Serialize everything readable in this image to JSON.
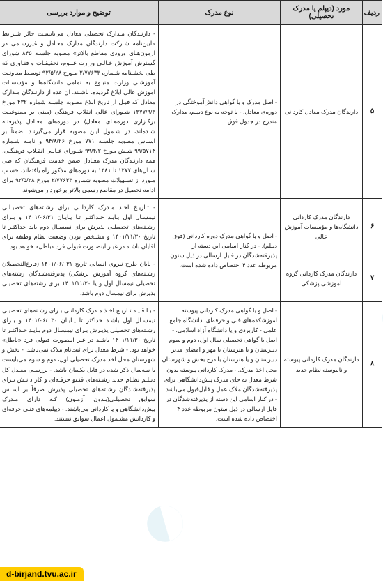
{
  "footer": "d-birjand.tvu.ac.ir",
  "headers": {
    "num": "ردیف",
    "case": "مورد (دیپلم یا مدرک تحصیلی)",
    "type": "نوع مدرک",
    "desc": "توضیح و موارد بررسی"
  },
  "rows": [
    {
      "num": "۵",
      "case": "دارندگان مدرک معادل کاردانی",
      "type": "- اصل مدرک و یا گواهی دانش‌آموختگی در دوره‌ی معادل.\n- با توجه به نوع دیپلم، مدارک مندرج در جدول فوق.",
      "desc": "- دارنـدگان مـدارک تحصیلی معادل می‌بایسـت حائز شـرایط «آیین‌نامه شـرکت دارندگان مدارک معـادل و غیررسـمی در آزمون‌هـای ورودی مقاطع بالاتر» مصوبه جلسـه ۸۴۵ شورای گسترش آموزش عـالـی وزارت علـوم، تحقیقـات و فنـاوری که طی بخشـنامه شـماره ۲/۷۷۶۳۳ مـورخ ۹۲/۵/۲۸ توسـط معاونـت آموزشـی وزارت متبـوع به تمامی دانشگاه‌ها و مؤسسـات آموزش عالی ابلاغ گردیده، باشـند. آن عده از دارنـدگان مـدارک معادل که قبـل از تاریخ ابلاغ مصوبه جلسـه شماره ۴۳۲ مورخ ۱۳۷۷/۹/۳ شـورای عالی انقلاب فرهنگی (مبنی بر ممنوعیـت برگـزاری دوره‌هـای معادل) در دوره‌های معـادل پذیرفتـه شـده‌اند، در شـمول ایـن مصوبه قرار می‌گیرنـد. ضمناً بر اسـاس مصوبه جلسـه ۷۷۱ مورخ ۹۴/۸/۲۶ و نامـه شـماره ۹۹/۵۷۱۴ شـش مورخ ۹۹/۴/۲ شـورای عـالـی انقـلاب فرهنگـی، همه دارنـدگان مدرک معـادل ضمن خدمت فرهنگیان که طی سـال‌های ۱۲۷۷ تا ۱۳۸۱ به دوره‌های مذکور راه یافته‌اند، حسـب مـورد از تسـهیلات مصوبه شماره ۲/۷۷۶۳۳ مورخ ۹۲/۵/۲۸ برای ادامه تحصیل در مقاطع رسمی بالاتر برخوردار می‌شوند."
    },
    {
      "num": "۶",
      "case": "دارندگان مدرک کاردانی دانشگاه‌ها و مؤسسات آموزش عالی",
      "type": "- اصل و یا گواهی مدرک دوره کاردانی (فوق دیپلم).\n- در کنار اسامی این دسته از پذیرفته‌شدگان در فایل ارسالی در ذیل ستون مربوطه عدد ۴ اختصاص داده شده است.",
      "desc": "- تـاریـخ اخـذ مـدرک کاردانـی برای رشـته‌های تحصیـلـی نیمسـال اول بـایـد حـداکثـر تـا پـایـان ۱۴۰۱/۰۶/۳۱ و بـرای رشـته‌های تحصیلـی پذیرش برای نیمسـال دوم باید حداکثـر تا تاریخ ۱۴۰۱/۱۱/۳۰ و مشـخص بودن وضعیت نظام وظیفه برای آقایان باشـد در غیـر اینصـورت قبولی فرد «باطل» خواهد بود."
    },
    {
      "num": "۷",
      "case": "دارندگان مدرک کاردانی گروه آموزشی پزشکی",
      "type": "",
      "desc": "- پایان طرح نیروی انسانی تاریخ ۳۱ /۱۴۰۱/۰۶ (فارغ‌التحصیلان رشـته‌های گروه آموزش پزشکی) پذیرفته‌شـدگان رشته‌های تحصیلی نیمسال اول و یا ۱۴۰۱/۱۱/۳۰ برای رشته‌های تحصیلی پذیرش برای نیمسال دوم باشد."
    },
    {
      "num": "۸",
      "case": "دارندگان مدرک کاردانی پیوسته و ناپیوسته نظام جدید",
      "type": "- اصل و یا گواهی مدرک کاردانی پیوسته آموزشکده‌های فنی و حرفه‌ای، دانشگاه جامع علمی - کاربردی و یا دانشگاه آزاد اسلامی.\n- اصل یا گواهی تحصیلی سال اول، دوم و سوم دبیرستان و یا هنرستان با مهر و امضای مدیر دبیرستان و یا هنرستان با درج بخش و شهرستان محل اخذ مدرک.\n- مدرک کاردانی پیوسته بدون شرط معدل به جای مدرک پیش‌دانشگاهی برای پذیرفته‌شدگان ملاک عمل و قابل‌قبول می‌باشد.\n- در کنار اسامی این دسته از پذیرفته‌شدگان در فایل ارسالی در ذیل ستون مربوطه عدد ۴ اختصاص داده شده است.",
      "desc": "- بـا قـیـد تـاریـخ اخـذ مـدرک کاردانـی بـرای رشـته‌های تحصیلی نیمسـال اول باشـد حداکثر تا پـایـان ۳۰ /۱۴۰۱/۰۶ و بـرای رشـته‌های تحصیلی پذیـرش بـرای نیمسـال دوم بـایـد حـداکثـر تا تاریخ ۱۴۰۱/۱۱/۳۰ باشـد در غیر اینصورت قبولی فرد «باطل» خواهد بود.\n- شرط معدل برای ثبت‌نام ملاک نمی‌باشد.\n- بخش و شهرستان محل اخذ مدرک تحصیلی اول، دوم و سوم می‌بایست با سه‌سال ذکر شده در فایل یکسان باشد.\n- بررسـی معـدل کل دیپلـم نظـام جدید رشـته‌های فنـیو حرفـه‌ای و کار دانـش بـرای پذیرفته‌شـدگان رشـته‌های تحصیلی پذیرش صرفاً بر اسـاس سوابق تحصیلـی(بـدون آزمـون) کـه دارای مـدرک پیش‌دانشگاهی و یا کاردانی می‌باشند.\n- دیپلمه‌های فنـی حرفه‌ای و کاردانش مشـمول اعمال سوابق نیستند."
    }
  ],
  "style": {
    "header_bg": "#d9d9d9",
    "border_color": "#2a2a2a",
    "cell_bg": "#ffffff",
    "font_family": "Tahoma",
    "header_fontsize": 10,
    "cell_fontsize": 8.5,
    "footer_bg": "#ffcc00",
    "watermark_color": "#e8f4f8"
  }
}
